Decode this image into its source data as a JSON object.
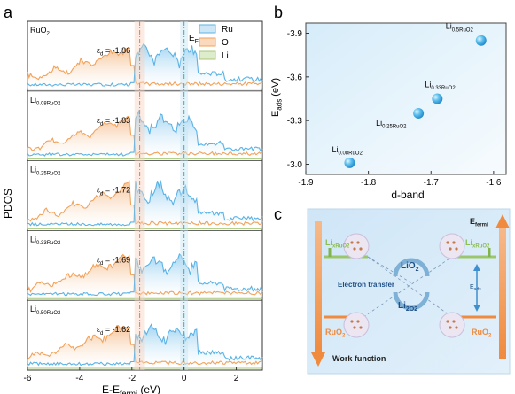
{
  "panels": {
    "a": {
      "label": "a",
      "ylabel": "PDOS",
      "xlabel": "E-E_fermi (eV)",
      "xticks": [
        "-6",
        "-4",
        "-2",
        "0",
        "2"
      ],
      "legend": [
        {
          "name": "Ru",
          "color": "#5ab3e6",
          "fill": "#cde7f6"
        },
        {
          "name": "O",
          "color": "#f2a25a",
          "fill": "#fbd9bd"
        },
        {
          "name": "Li",
          "color": "#a8c97a",
          "fill": "#ddeccb"
        }
      ],
      "ef_label": "E_F",
      "subplots": [
        {
          "name": "RuO_2",
          "ed_label": "ε_d = -1.86",
          "ed": -1.86
        },
        {
          "name": "Li_0.08RuO_2",
          "ed_label": "ε_d = -1.83",
          "ed": -1.83
        },
        {
          "name": "Li_0.25RuO_2",
          "ed_label": "ε_d = -1.72",
          "ed": -1.72
        },
        {
          "name": "Li_0.33RuO_2",
          "ed_label": "ε_d = -1.69",
          "ed": -1.69
        },
        {
          "name": "Li_0.50RuO_2",
          "ed_label": "ε_d = -1.62",
          "ed": -1.62
        }
      ]
    },
    "b": {
      "label": "b",
      "xlabel": "d-band",
      "ylabel": "E_ads (eV)",
      "xticks": [
        "-1.9",
        "-1.8",
        "-1.7",
        "-1.6"
      ],
      "yticks": [
        "-3.9",
        "-3.6",
        "-3.3",
        "-3.0"
      ]
    },
    "c": {
      "label": "c",
      "efermi": "E_fermi",
      "work_function": "Work function",
      "li_ruo2_left": "Li_xRuO_2",
      "li_ruo2_right": "Li_xRuO_2",
      "ruo2_left": "RuO_2",
      "ruo2_right": "RuO_2",
      "electron_transfer": "Electron transfer",
      "lio2": "LiO_2",
      "li2o2": "Li_2O_2",
      "eads": "E_ads"
    }
  },
  "chart_data": [
    {
      "type": "area",
      "title": "",
      "xlabel": "E-E_fermi (eV)",
      "ylabel": "PDOS",
      "xlim": [
        -6,
        3
      ],
      "series": [
        {
          "name": "Ru"
        },
        {
          "name": "O"
        },
        {
          "name": "Li"
        }
      ],
      "annotations": [
        "E_F",
        "ε_d = -1.86",
        "ε_d = -1.83",
        "ε_d = -1.72",
        "ε_d = -1.69",
        "ε_d = -1.62"
      ],
      "fermi_level": 0
    },
    {
      "type": "scatter",
      "title": "",
      "xlabel": "d-band",
      "ylabel": "E_ads (eV)",
      "xlim": [
        -1.9,
        -1.58
      ],
      "ylim": [
        -2.93,
        -3.97
      ],
      "points": [
        {
          "label": "Li_0.08RuO_2",
          "x": -1.83,
          "y": -3.01
        },
        {
          "label": "Li_0.25RuO_2",
          "x": -1.72,
          "y": -3.35
        },
        {
          "label": "Li_0.33RuO_2",
          "x": -1.69,
          "y": -3.45
        },
        {
          "label": "Li_0.5RuO_2",
          "x": -1.62,
          "y": -3.85
        }
      ]
    }
  ]
}
